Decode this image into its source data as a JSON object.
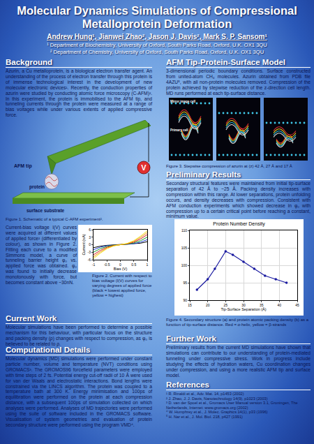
{
  "header": {
    "title": "Molecular Dynamics Simulations of Compressional Metalloprotein Deformation",
    "authors": "Andrew Hung¹, Jianwei Zhao², Jason J. Davis², Mark S. P. Sansom¹",
    "affiliations": [
      "¹ Department of Biochemistry, University of Oxford, South Parks Road, Oxford, U.K. OX1 3QU",
      "² Department of Chemistry, University of Oxford, South Parks Road, Oxford, U.K. OX1 3QU"
    ]
  },
  "sections": {
    "background": {
      "heading": "Background",
      "text": "Azurin, a Cu metalloprotein, is a biological electron transfer agent. An understanding of the process of electron transfer through this protein is of immense technological interest in the development of new molecular electronic devices¹. Recently, the conduction properties of azurin were studied by conducting atomic force microscopy (C-AFM)². In this experiment, the protein is immobilised to the AFM tip, and tunneling currents through the protein were measured at a range of bias voltages while under various extents of applied compressive force."
    },
    "current_bias": {
      "text": "Current-bias voltage I(V) curves were acquired at different values of applied force² (differentiated by colour), as shown in Figure 2. Fitting each curve to a modified Simmons model, a curve of tunneling barrier height φ₀ vs. applied force was obtained. φ₀ was found to initially decrease monotonously with force, but becomes constant above ~30nN."
    },
    "current_work": {
      "heading": "Current Work",
      "text": "Molecular simulations have been performed to determine a possible mechanism for this behaviour, with particular focus on the structure and packing density (ρ) changes with respect to compression, as φ₀ is believed to be related to ρ."
    },
    "computational": {
      "heading": "Computational Details",
      "text": "Molecular dynamics (MD) simulations were performed under constant particle number, volume and temperature (NVT) conditions using GROMACS³. The GROMOS96 forcefield parameters were employed with time steps of 2 fs. Potential energy cut-off radii of 10 Å were used for van der Waals and electrostatic interactions. Bond lengths were constrained via the LINCS algorithm. The protein was coupled to a temperature bath at 300 K. Energy minimisation and 100ps of equilibration were performed on the protein at each compression distance, with a subsequent 100ps of simulation collected on which analyses were performed. Analyses of MD trajectories were performed using the suite of software included in the GROMACS software. Visualisation of system geometries and evaluation of protein secondary structure were performed using the program VMD⁴."
    },
    "afm_model": {
      "heading": "AFM Tip-Protein-Surface Model",
      "text": "3-dimensional periodic boundary conditions. Surface constructed from united-atom CH₄ molecules. Azurin obtained from PDB file 4AZU⁵, with all non-protein molecules removed. Compression of the protein achieved by stepwise reduction of the z-direction cell length. MD runs performed at each tip-surface distance."
    },
    "preliminary": {
      "heading": "Preliminary Results",
      "text": "Secondary structural features were maintained from initial tip-surface separation of 42 Å to ~25 Å. Packing density increases with compression within this range. At lower separations, protein unfolding occurs, and density decreases with compression. Consistent with AFM conduction experiments which showed decrease in φ₀ with compression up to a certain critical point before reaching a constant, minimum value."
    },
    "further": {
      "heading": "Further Work",
      "text": "Preliminary results from the current MD simulations have shown that simulations can contribute to our understanding of protein-mediated tunneling under compressive stress. Work in progress include studying the effects of hydration waters, Cu coordination changes under compression, and using a more realistic AFM tip and surface model."
    },
    "references": {
      "heading": "References",
      "items": [
        "¹ R. Rinaldi et al., Adv. Mat. 14, p1453 (2002)",
        "² J. Zhao, J. J. Davis, Nanotechnology 14(9), p1023 (2003)",
        "³ D. van der Spoel et al., Gromacs User Manual version 3.1, Groningen, The Netherlands, Internet: www.gromacs.org (2002)",
        "⁴ W. Humphrey et al., J. Molec. Graphics 14(1), p33 (1996)",
        "⁵ H. Nar et al., J. Mol. Biol. 218, p427 (1991)"
      ]
    }
  },
  "figures": {
    "fig1": {
      "labels": {
        "tip": "AFM tip",
        "protein": "protein",
        "surface": "surface substrate",
        "voltage": "V"
      },
      "caption": "Figure 1. Schematic of a typical C-AFM experiment²."
    },
    "fig2": {
      "caption": "Figure 2. Current with respect to bias voltage (I(V) curves for varying degrees of applied force (black = lowest applied force, yellow = highest)"
    },
    "fig3": {
      "labels": [
        "Mirror image cell",
        "Primary cell"
      ],
      "caption": "Figure 3. Stepwise compression of azurin at (z) 42 Å, 27 Å and 17 Å"
    },
    "fig4": {
      "caption": "Figure 4. Secondary structure (a) and protein atomic packing density (b) as a function of tip-surface distance. Red = α-helix, yellow = β-strands"
    }
  },
  "chart_data": [
    {
      "type": "line",
      "x_label": "Bias (V)",
      "y_label": "Current (nA)",
      "x": [
        -1,
        -0.75,
        -0.5,
        -0.25,
        0,
        0.25,
        0.5,
        0.75,
        1
      ],
      "xlim": [
        -1,
        1
      ],
      "xticks": [
        -1,
        -0.5,
        0,
        0.5,
        1
      ],
      "ylim": [
        -6,
        6
      ],
      "yticks": [
        -6,
        -3,
        0,
        3,
        6
      ],
      "grid": false,
      "series": [
        {
          "color": "#000000",
          "values": [
            -1.2,
            -0.6,
            -0.25,
            -0.08,
            0,
            0.08,
            0.25,
            0.6,
            1.2
          ]
        },
        {
          "color": "#1f3fd0",
          "values": [
            -2.0,
            -1.0,
            -0.4,
            -0.12,
            0,
            0.12,
            0.4,
            1.0,
            2.0
          ]
        },
        {
          "color": "#1a9a2a",
          "values": [
            -3.0,
            -1.6,
            -0.7,
            -0.2,
            0,
            0.2,
            0.7,
            1.6,
            3.0
          ]
        },
        {
          "color": "#d02020",
          "values": [
            -4.0,
            -2.3,
            -1.0,
            -0.3,
            0,
            0.3,
            1.0,
            2.3,
            4.0
          ]
        },
        {
          "color": "#f08a10",
          "values": [
            -4.8,
            -2.9,
            -1.3,
            -0.4,
            0,
            0.4,
            1.3,
            2.9,
            4.8
          ]
        },
        {
          "color": "#f0e010",
          "values": [
            -5.5,
            -3.4,
            -1.6,
            -0.5,
            0,
            0.5,
            1.6,
            3.4,
            5.5
          ]
        }
      ]
    },
    {
      "type": "line",
      "title": "Protein Number Density",
      "x_label": "Tip-Surface Separation (Å)",
      "x": [
        17,
        20,
        22,
        25,
        27,
        30,
        33,
        36,
        39,
        42
      ],
      "values": [
        93,
        96,
        99,
        104,
        103,
        101,
        99,
        97,
        96,
        95
      ],
      "color": "#1a1aa0",
      "marker": "circle",
      "xlim": [
        15,
        45
      ],
      "xticks": [
        15,
        20,
        25,
        30,
        35,
        40,
        45
      ],
      "ylim": [
        90,
        110
      ],
      "yticks": [
        90,
        95,
        100,
        105,
        110
      ],
      "grid": true
    }
  ]
}
